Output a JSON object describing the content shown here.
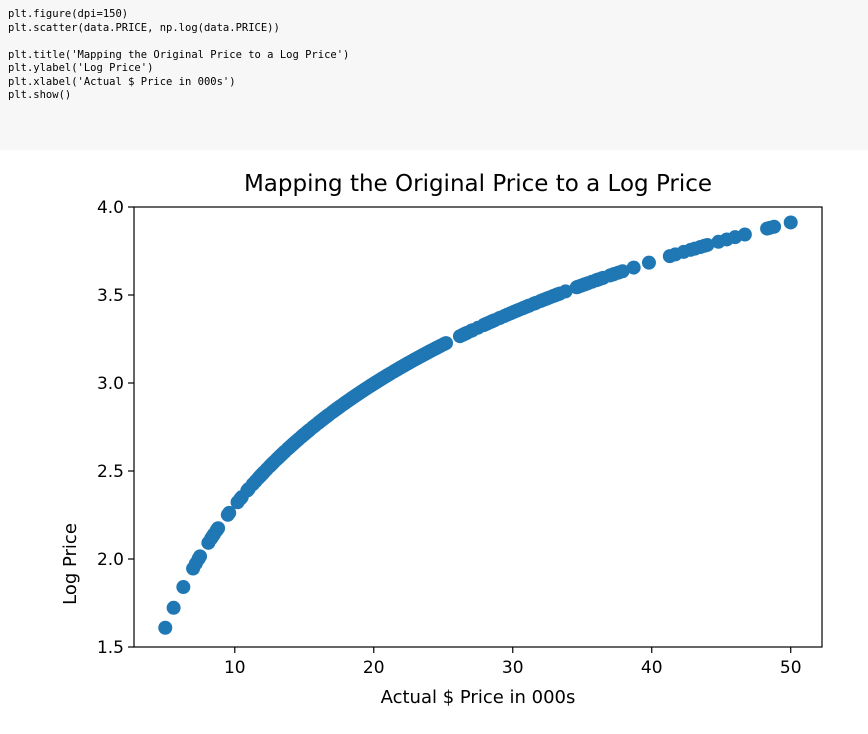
{
  "code_cell": {
    "lines": [
      "plt.figure(dpi=150)",
      "plt.scatter(data.PRICE, np.log(data.PRICE))",
      "",
      "plt.title('Mapping the Original Price to a Log Price')",
      "plt.ylabel('Log Price')",
      "plt.xlabel('Actual $ Price in 000s')",
      "plt.show()"
    ]
  },
  "chart_data": {
    "type": "scatter",
    "title": "Mapping the Original Price to a Log Price",
    "xlabel": "Actual $ Price in 000s",
    "ylabel": "Log Price",
    "xlim": [
      2.75,
      52.25
    ],
    "ylim": [
      1.5,
      4.0
    ],
    "xticks": [
      10,
      20,
      30,
      40,
      50
    ],
    "xtick_labels": [
      "10",
      "20",
      "30",
      "40",
      "50"
    ],
    "yticks": [
      1.5,
      2.0,
      2.5,
      3.0,
      3.5,
      4.0
    ],
    "ytick_labels": [
      "1.5",
      "2.0",
      "2.5",
      "3.0",
      "3.5",
      "4.0"
    ],
    "grid": false,
    "marker_color": "#1f77b4",
    "x": [
      5.0,
      5.6,
      6.3,
      7.0,
      7.2,
      7.4,
      7.5,
      8.1,
      8.3,
      8.4,
      8.5,
      8.7,
      8.8,
      9.5,
      9.6,
      10.2,
      10.4,
      10.5,
      10.9,
      11.0,
      11.3,
      11.5,
      11.7,
      11.8,
      11.9,
      12.0,
      12.1,
      12.3,
      12.5,
      12.6,
      12.7,
      12.8,
      13.0,
      13.1,
      13.2,
      13.3,
      13.4,
      13.5,
      13.6,
      13.8,
      13.9,
      14.0,
      14.1,
      14.2,
      14.3,
      14.4,
      14.5,
      14.6,
      14.8,
      14.9,
      15.0,
      15.1,
      15.2,
      15.3,
      15.4,
      15.6,
      15.7,
      15.8,
      16.0,
      16.1,
      16.2,
      16.3,
      16.4,
      16.5,
      16.6,
      16.7,
      16.8,
      17.0,
      17.1,
      17.2,
      17.3,
      17.4,
      17.5,
      17.6,
      17.8,
      17.9,
      18.0,
      18.1,
      18.2,
      18.3,
      18.4,
      18.5,
      18.6,
      18.7,
      18.8,
      18.9,
      19.0,
      19.1,
      19.2,
      19.3,
      19.4,
      19.5,
      19.6,
      19.7,
      19.8,
      19.9,
      20.0,
      20.1,
      20.2,
      20.3,
      20.4,
      20.5,
      20.6,
      20.7,
      20.8,
      20.9,
      21.0,
      21.1,
      21.2,
      21.4,
      21.5,
      21.6,
      21.7,
      21.8,
      21.9,
      22.0,
      22.1,
      22.2,
      22.3,
      22.4,
      22.5,
      22.6,
      22.7,
      22.8,
      22.9,
      23.0,
      23.1,
      23.2,
      23.3,
      23.4,
      23.5,
      23.6,
      23.7,
      23.8,
      23.9,
      24.0,
      24.1,
      24.2,
      24.3,
      24.4,
      24.5,
      24.6,
      24.7,
      24.8,
      25.0,
      25.1,
      25.2,
      26.2,
      26.4,
      26.5,
      26.6,
      26.7,
      27.0,
      27.1,
      27.5,
      27.9,
      28.0,
      28.1,
      28.2,
      28.4,
      28.5,
      28.6,
      28.7,
      29.0,
      29.1,
      29.4,
      29.6,
      29.8,
      29.9,
      30.1,
      30.3,
      30.5,
      30.7,
      30.8,
      31.0,
      31.1,
      31.2,
      31.5,
      31.6,
      31.7,
      32.0,
      32.2,
      32.4,
      32.5,
      32.7,
      32.9,
      33.0,
      33.1,
      33.2,
      33.3,
      33.4,
      33.8,
      34.6,
      34.7,
      34.9,
      35.1,
      35.2,
      35.4,
      35.7,
      36.0,
      36.1,
      36.2,
      36.4,
      36.5,
      37.0,
      37.2,
      37.3,
      37.6,
      37.9,
      38.7,
      39.8,
      41.3,
      41.7,
      42.3,
      42.8,
      43.1,
      43.5,
      43.8,
      44.0,
      44.8,
      45.4,
      46.0,
      46.7,
      48.3,
      48.5,
      48.8,
      50.0
    ]
  }
}
